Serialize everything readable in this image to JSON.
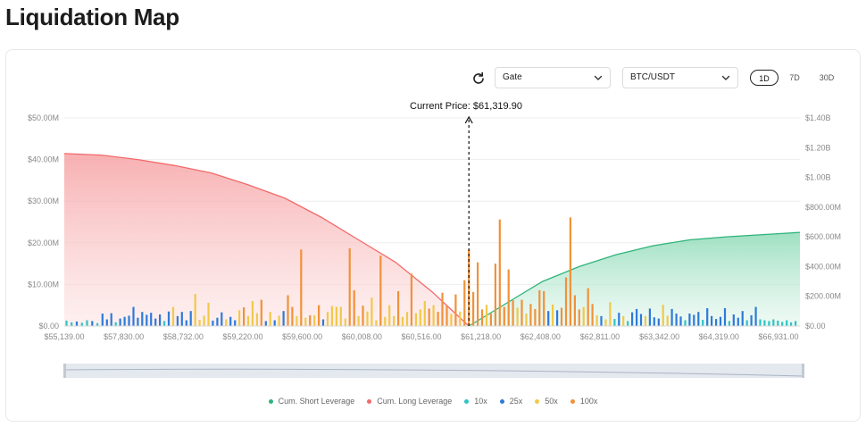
{
  "page": {
    "title": "Liquidation Map"
  },
  "controls": {
    "exchange": "Gate",
    "pair": "BTC/USDT",
    "timeframes": [
      "1D",
      "7D",
      "30D"
    ],
    "active_timeframe": "1D"
  },
  "current_price_label": "Current Price: $61,319.90",
  "colors": {
    "short": "#2fb37a",
    "long": "#f26a6a",
    "lev10": "#2ec4c4",
    "lev25": "#2f7ad9",
    "lev50": "#f0c94a",
    "lev100": "#f0923a"
  },
  "chart_data": {
    "type": "bar",
    "x_ticks": [
      "$55,139.00",
      "$57,830.00",
      "$58,732.00",
      "$59,220.00",
      "$59,600.00",
      "$60,008.00",
      "$60,516.00",
      "$61,218.00",
      "$62,408.00",
      "$62,811.00",
      "$63,342.00",
      "$64,319.00",
      "$66,931.00"
    ],
    "y_left_ticks": [
      "$0.00",
      "$10.00M",
      "$20.00M",
      "$30.00M",
      "$40.00M",
      "$50.00M"
    ],
    "y_right_ticks": [
      "$0.00",
      "$200.00M",
      "$400.00M",
      "$600.00M",
      "$800.00M",
      "$1.00B",
      "$1.20B",
      "$1.40B"
    ],
    "ylim_left": [
      0,
      50
    ],
    "ylim_right": [
      0,
      1400
    ],
    "current_price_position": 0.55,
    "cum_long": {
      "name": "Cum. Long Leverage",
      "points": [
        [
          0,
          1160
        ],
        [
          0.05,
          1150
        ],
        [
          0.1,
          1120
        ],
        [
          0.15,
          1080
        ],
        [
          0.2,
          1030
        ],
        [
          0.25,
          950
        ],
        [
          0.3,
          860
        ],
        [
          0.35,
          730
        ],
        [
          0.4,
          580
        ],
        [
          0.45,
          430
        ],
        [
          0.5,
          230
        ],
        [
          0.55,
          0
        ]
      ]
    },
    "cum_short": {
      "name": "Cum. Short Leverage",
      "points": [
        [
          0.55,
          0
        ],
        [
          0.6,
          150
        ],
        [
          0.65,
          300
        ],
        [
          0.7,
          400
        ],
        [
          0.75,
          480
        ],
        [
          0.8,
          540
        ],
        [
          0.85,
          580
        ],
        [
          0.9,
          600
        ],
        [
          0.95,
          615
        ],
        [
          1.0,
          630
        ]
      ]
    },
    "series": [
      {
        "name": "10x",
        "key": "lev10"
      },
      {
        "name": "25x",
        "key": "lev25"
      },
      {
        "name": "50x",
        "key": "lev50"
      },
      {
        "name": "100x",
        "key": "lev100"
      }
    ],
    "bars": [
      [
        0.003,
        1.3,
        "lev10"
      ],
      [
        0.01,
        0.9,
        "lev10"
      ],
      [
        0.017,
        1.1,
        "lev25"
      ],
      [
        0.024,
        0.8,
        "lev10"
      ],
      [
        0.031,
        1.4,
        "lev10"
      ],
      [
        0.038,
        1.2,
        "lev25"
      ],
      [
        0.045,
        0.7,
        "lev10"
      ],
      [
        0.052,
        3.0,
        "lev25"
      ],
      [
        0.058,
        1.6,
        "lev25"
      ],
      [
        0.064,
        3.1,
        "lev25"
      ],
      [
        0.07,
        0.9,
        "lev10"
      ],
      [
        0.076,
        1.8,
        "lev25"
      ],
      [
        0.082,
        2.2,
        "lev25"
      ],
      [
        0.088,
        2.5,
        "lev25"
      ],
      [
        0.094,
        4.6,
        "lev25"
      ],
      [
        0.1,
        2.0,
        "lev25"
      ],
      [
        0.106,
        3.4,
        "lev25"
      ],
      [
        0.112,
        2.7,
        "lev25"
      ],
      [
        0.118,
        3.2,
        "lev25"
      ],
      [
        0.124,
        1.8,
        "lev25"
      ],
      [
        0.13,
        2.8,
        "lev25"
      ],
      [
        0.136,
        1.2,
        "lev10"
      ],
      [
        0.142,
        3.5,
        "lev25"
      ],
      [
        0.148,
        4.6,
        "lev50"
      ],
      [
        0.154,
        2.4,
        "lev25"
      ],
      [
        0.16,
        3.4,
        "lev25"
      ],
      [
        0.166,
        1.4,
        "lev25"
      ],
      [
        0.172,
        3.6,
        "lev25"
      ],
      [
        0.178,
        7.7,
        "lev50"
      ],
      [
        0.184,
        1.5,
        "lev50"
      ],
      [
        0.19,
        2.5,
        "lev50"
      ],
      [
        0.196,
        5.6,
        "lev50"
      ],
      [
        0.202,
        1.3,
        "lev25"
      ],
      [
        0.208,
        2.0,
        "lev25"
      ],
      [
        0.214,
        3.3,
        "lev25"
      ],
      [
        0.22,
        1.6,
        "lev50"
      ],
      [
        0.226,
        2.2,
        "lev25"
      ],
      [
        0.232,
        1.4,
        "lev25"
      ],
      [
        0.238,
        3.8,
        "lev50"
      ],
      [
        0.244,
        4.5,
        "lev100"
      ],
      [
        0.25,
        2.4,
        "lev50"
      ],
      [
        0.256,
        6.0,
        "lev50"
      ],
      [
        0.262,
        3.1,
        "lev50"
      ],
      [
        0.268,
        6.3,
        "lev100"
      ],
      [
        0.274,
        1.2,
        "lev25"
      ],
      [
        0.28,
        3.4,
        "lev50"
      ],
      [
        0.286,
        1.4,
        "lev25"
      ],
      [
        0.292,
        2.5,
        "lev50"
      ],
      [
        0.298,
        3.6,
        "lev25"
      ],
      [
        0.304,
        7.4,
        "lev100"
      ],
      [
        0.31,
        4.6,
        "lev100"
      ],
      [
        0.316,
        2.4,
        "lev50"
      ],
      [
        0.322,
        18.4,
        "lev100"
      ],
      [
        0.328,
        2.0,
        "lev50"
      ],
      [
        0.334,
        2.6,
        "lev100"
      ],
      [
        0.34,
        2.6,
        "lev50"
      ],
      [
        0.346,
        5.0,
        "lev100"
      ],
      [
        0.352,
        1.6,
        "lev25"
      ],
      [
        0.358,
        3.4,
        "lev50"
      ],
      [
        0.364,
        4.8,
        "lev50"
      ],
      [
        0.37,
        4.6,
        "lev50"
      ],
      [
        0.376,
        4.6,
        "lev50"
      ],
      [
        0.382,
        1.8,
        "lev50"
      ],
      [
        0.388,
        18.7,
        "lev100"
      ],
      [
        0.394,
        8.6,
        "lev100"
      ],
      [
        0.4,
        2.4,
        "lev50"
      ],
      [
        0.406,
        4.9,
        "lev100"
      ],
      [
        0.412,
        3.5,
        "lev50"
      ],
      [
        0.418,
        6.8,
        "lev50"
      ],
      [
        0.424,
        1.4,
        "lev50"
      ],
      [
        0.43,
        16.9,
        "lev100"
      ],
      [
        0.436,
        2.2,
        "lev50"
      ],
      [
        0.442,
        5.0,
        "lev50"
      ],
      [
        0.448,
        2.4,
        "lev50"
      ],
      [
        0.454,
        8.4,
        "lev100"
      ],
      [
        0.46,
        2.2,
        "lev50"
      ],
      [
        0.466,
        3.4,
        "lev50"
      ],
      [
        0.472,
        12.6,
        "lev100"
      ],
      [
        0.478,
        3.1,
        "lev50"
      ],
      [
        0.484,
        4.0,
        "lev50"
      ],
      [
        0.49,
        6.0,
        "lev50"
      ],
      [
        0.496,
        4.2,
        "lev100"
      ],
      [
        0.502,
        5.0,
        "lev50"
      ],
      [
        0.508,
        3.4,
        "lev100"
      ],
      [
        0.514,
        8.0,
        "lev100"
      ],
      [
        0.52,
        4.9,
        "lev100"
      ],
      [
        0.526,
        2.9,
        "lev50"
      ],
      [
        0.532,
        7.6,
        "lev100"
      ],
      [
        0.538,
        3.5,
        "lev50"
      ],
      [
        0.544,
        11.0,
        "lev100"
      ],
      [
        0.55,
        18.4,
        "lev100"
      ],
      [
        0.556,
        8.2,
        "lev100"
      ],
      [
        0.562,
        15.3,
        "lev100"
      ],
      [
        0.568,
        4.0,
        "lev100"
      ],
      [
        0.574,
        5.1,
        "lev50"
      ],
      [
        0.58,
        3.0,
        "lev100"
      ],
      [
        0.586,
        15.0,
        "lev100"
      ],
      [
        0.592,
        25.6,
        "lev100"
      ],
      [
        0.598,
        4.6,
        "lev100"
      ],
      [
        0.604,
        13.6,
        "lev100"
      ],
      [
        0.61,
        6.2,
        "lev100"
      ],
      [
        0.616,
        4.4,
        "lev50"
      ],
      [
        0.622,
        6.3,
        "lev100"
      ],
      [
        0.628,
        3.0,
        "lev50"
      ],
      [
        0.634,
        5.3,
        "lev100"
      ],
      [
        0.64,
        4.1,
        "lev100"
      ],
      [
        0.646,
        8.6,
        "lev100"
      ],
      [
        0.652,
        8.4,
        "lev100"
      ],
      [
        0.658,
        3.6,
        "lev25"
      ],
      [
        0.664,
        5.2,
        "lev50"
      ],
      [
        0.67,
        3.8,
        "lev25"
      ],
      [
        0.676,
        4.4,
        "lev100"
      ],
      [
        0.682,
        11.7,
        "lev100"
      ],
      [
        0.688,
        26.1,
        "lev100"
      ],
      [
        0.694,
        7.4,
        "lev100"
      ],
      [
        0.7,
        4.0,
        "lev100"
      ],
      [
        0.706,
        4.6,
        "lev50"
      ],
      [
        0.712,
        9.1,
        "lev100"
      ],
      [
        0.718,
        5.3,
        "lev100"
      ],
      [
        0.724,
        2.6,
        "lev50"
      ],
      [
        0.73,
        2.4,
        "lev25"
      ],
      [
        0.736,
        1.6,
        "lev50"
      ],
      [
        0.742,
        5.7,
        "lev50"
      ],
      [
        0.748,
        1.7,
        "lev10"
      ],
      [
        0.754,
        3.2,
        "lev25"
      ],
      [
        0.76,
        2.4,
        "lev50"
      ],
      [
        0.766,
        1.2,
        "lev10"
      ],
      [
        0.772,
        3.3,
        "lev25"
      ],
      [
        0.778,
        4.1,
        "lev25"
      ],
      [
        0.784,
        2.9,
        "lev25"
      ],
      [
        0.79,
        2.4,
        "lev50"
      ],
      [
        0.796,
        4.2,
        "lev25"
      ],
      [
        0.802,
        2.1,
        "lev25"
      ],
      [
        0.808,
        1.8,
        "lev25"
      ],
      [
        0.814,
        5.1,
        "lev50"
      ],
      [
        0.82,
        2.5,
        "lev50"
      ],
      [
        0.826,
        4.1,
        "lev25"
      ],
      [
        0.832,
        3.0,
        "lev25"
      ],
      [
        0.838,
        2.3,
        "lev25"
      ],
      [
        0.844,
        1.4,
        "lev10"
      ],
      [
        0.85,
        3.0,
        "lev25"
      ],
      [
        0.856,
        2.7,
        "lev25"
      ],
      [
        0.862,
        3.4,
        "lev25"
      ],
      [
        0.868,
        1.5,
        "lev10"
      ],
      [
        0.874,
        4.3,
        "lev25"
      ],
      [
        0.88,
        2.4,
        "lev25"
      ],
      [
        0.886,
        1.7,
        "lev25"
      ],
      [
        0.892,
        2.2,
        "lev25"
      ],
      [
        0.898,
        4.3,
        "lev25"
      ],
      [
        0.904,
        1.2,
        "lev10"
      ],
      [
        0.91,
        2.8,
        "lev25"
      ],
      [
        0.916,
        2.0,
        "lev25"
      ],
      [
        0.922,
        3.6,
        "lev25"
      ],
      [
        0.928,
        1.4,
        "lev10"
      ],
      [
        0.934,
        2.6,
        "lev25"
      ],
      [
        0.94,
        4.6,
        "lev25"
      ],
      [
        0.946,
        1.6,
        "lev10"
      ],
      [
        0.952,
        1.4,
        "lev10"
      ],
      [
        0.958,
        1.2,
        "lev10"
      ],
      [
        0.964,
        1.6,
        "lev10"
      ],
      [
        0.97,
        1.3,
        "lev10"
      ],
      [
        0.976,
        1.0,
        "lev10"
      ],
      [
        0.982,
        1.4,
        "lev10"
      ],
      [
        0.988,
        0.9,
        "lev10"
      ],
      [
        0.994,
        1.2,
        "lev10"
      ]
    ]
  },
  "legend": [
    {
      "label": "Cum. Short Leverage",
      "color": "#2fb37a"
    },
    {
      "label": "Cum. Long Leverage",
      "color": "#f26a6a"
    },
    {
      "label": "10x",
      "color": "#2ec4c4"
    },
    {
      "label": "25x",
      "color": "#2f7ad9"
    },
    {
      "label": "50x",
      "color": "#f0c94a"
    },
    {
      "label": "100x",
      "color": "#f0923a"
    }
  ]
}
